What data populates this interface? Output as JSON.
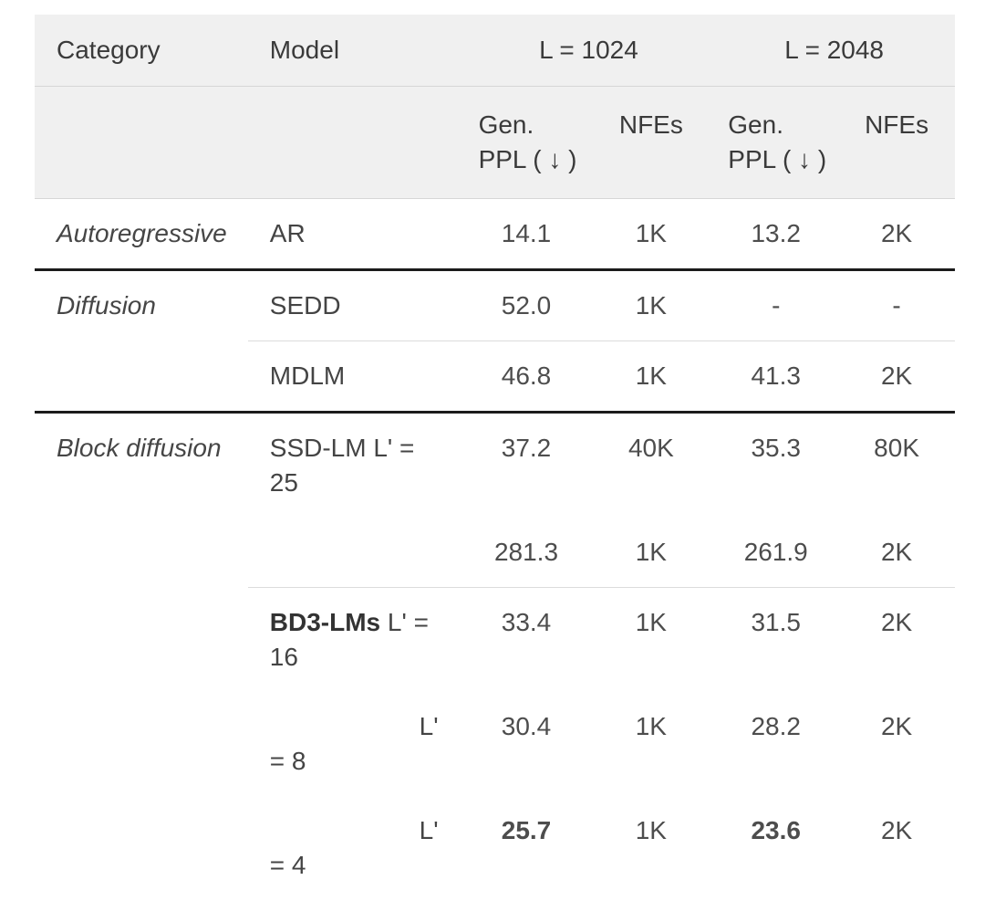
{
  "table": {
    "header": {
      "category": "Category",
      "model": "Model",
      "group1": "L = 1024",
      "group2": "L = 2048",
      "sub": {
        "gen_ppl_line1": "Gen.",
        "gen_ppl_line2": "PPL ( ↓ )",
        "nfes": "NFEs"
      }
    },
    "rows": [
      {
        "category": "Autoregressive",
        "divider": "none",
        "model_lines": [
          {
            "align": "left",
            "segments": [
              {
                "text": "AR",
                "bold": false
              }
            ]
          }
        ],
        "values": [
          {
            "text": "14.1",
            "bold": false
          },
          {
            "text": "1K",
            "bold": false
          },
          {
            "text": "13.2",
            "bold": false
          },
          {
            "text": "2K",
            "bold": false
          }
        ]
      },
      {
        "category": "Diffusion",
        "divider": "thick",
        "model_lines": [
          {
            "align": "left",
            "segments": [
              {
                "text": "SEDD",
                "bold": false
              }
            ]
          }
        ],
        "values": [
          {
            "text": "52.0",
            "bold": false
          },
          {
            "text": "1K",
            "bold": false
          },
          {
            "text": "-",
            "bold": false
          },
          {
            "text": "-",
            "bold": false
          }
        ]
      },
      {
        "category": "",
        "divider": "thin",
        "model_lines": [
          {
            "align": "left",
            "segments": [
              {
                "text": "MDLM",
                "bold": false
              }
            ]
          }
        ],
        "values": [
          {
            "text": "46.8",
            "bold": false
          },
          {
            "text": "1K",
            "bold": false
          },
          {
            "text": "41.3",
            "bold": false
          },
          {
            "text": "2K",
            "bold": false
          }
        ]
      },
      {
        "category": "Block diffusion",
        "divider": "thick",
        "model_lines": [
          {
            "align": "left",
            "segments": [
              {
                "text": "SSD-LM L' =",
                "bold": false
              }
            ]
          },
          {
            "align": "left",
            "segments": [
              {
                "text": "25",
                "bold": false
              }
            ]
          }
        ],
        "values": [
          {
            "text": "37.2",
            "bold": false
          },
          {
            "text": "40K",
            "bold": false
          },
          {
            "text": "35.3",
            "bold": false
          },
          {
            "text": "80K",
            "bold": false
          }
        ]
      },
      {
        "category": "",
        "divider": "none",
        "model_lines": [],
        "values": [
          {
            "text": "281.3",
            "bold": false
          },
          {
            "text": "1K",
            "bold": false
          },
          {
            "text": "261.9",
            "bold": false
          },
          {
            "text": "2K",
            "bold": false
          }
        ]
      },
      {
        "category": "",
        "divider": "thin",
        "model_lines": [
          {
            "align": "left",
            "segments": [
              {
                "text": "BD3-LMs",
                "bold": true
              },
              {
                "text": " L' =",
                "bold": false
              }
            ]
          },
          {
            "align": "left",
            "segments": [
              {
                "text": "16",
                "bold": false
              }
            ]
          }
        ],
        "values": [
          {
            "text": "33.4",
            "bold": false
          },
          {
            "text": "1K",
            "bold": false
          },
          {
            "text": "31.5",
            "bold": false
          },
          {
            "text": "2K",
            "bold": false
          }
        ]
      },
      {
        "category": "",
        "divider": "none",
        "model_lines": [
          {
            "align": "right",
            "segments": [
              {
                "text": "L'",
                "bold": false
              }
            ]
          },
          {
            "align": "left",
            "segments": [
              {
                "text": "= 8",
                "bold": false
              }
            ]
          }
        ],
        "values": [
          {
            "text": "30.4",
            "bold": false
          },
          {
            "text": "1K",
            "bold": false
          },
          {
            "text": "28.2",
            "bold": false
          },
          {
            "text": "2K",
            "bold": false
          }
        ]
      },
      {
        "category": "",
        "divider": "none",
        "model_lines": [
          {
            "align": "right",
            "segments": [
              {
                "text": "L'",
                "bold": false
              }
            ]
          },
          {
            "align": "left",
            "segments": [
              {
                "text": "= 4",
                "bold": false
              }
            ]
          }
        ],
        "values": [
          {
            "text": "25.7",
            "bold": true
          },
          {
            "text": "1K",
            "bold": false
          },
          {
            "text": "23.6",
            "bold": true
          },
          {
            "text": "2K",
            "bold": false
          }
        ]
      }
    ]
  },
  "chart_data": {
    "type": "table",
    "title": "",
    "columns": [
      "Category",
      "Model",
      "L = 1024 Gen. PPL (↓)",
      "L = 1024 NFEs",
      "L = 2048 Gen. PPL (↓)",
      "L = 2048 NFEs"
    ],
    "rows": [
      [
        "Autoregressive",
        "AR",
        "14.1",
        "1K",
        "13.2",
        "2K"
      ],
      [
        "Diffusion",
        "SEDD",
        "52.0",
        "1K",
        "-",
        "-"
      ],
      [
        "Diffusion",
        "MDLM",
        "46.8",
        "1K",
        "41.3",
        "2K"
      ],
      [
        "Block diffusion",
        "SSD-LM L' = 25",
        "37.2",
        "40K",
        "35.3",
        "80K"
      ],
      [
        "Block diffusion",
        "",
        "281.3",
        "1K",
        "261.9",
        "2K"
      ],
      [
        "Block diffusion",
        "BD3-LMs L' = 16",
        "33.4",
        "1K",
        "31.5",
        "2K"
      ],
      [
        "Block diffusion",
        "L' = 8",
        "30.4",
        "1K",
        "28.2",
        "2K"
      ],
      [
        "Block diffusion",
        "L' = 4",
        "25.7",
        "1K",
        "23.6",
        "2K"
      ]
    ],
    "bold_cells": [
      [
        "25.7",
        "23.6",
        "BD3-LMs"
      ]
    ]
  }
}
